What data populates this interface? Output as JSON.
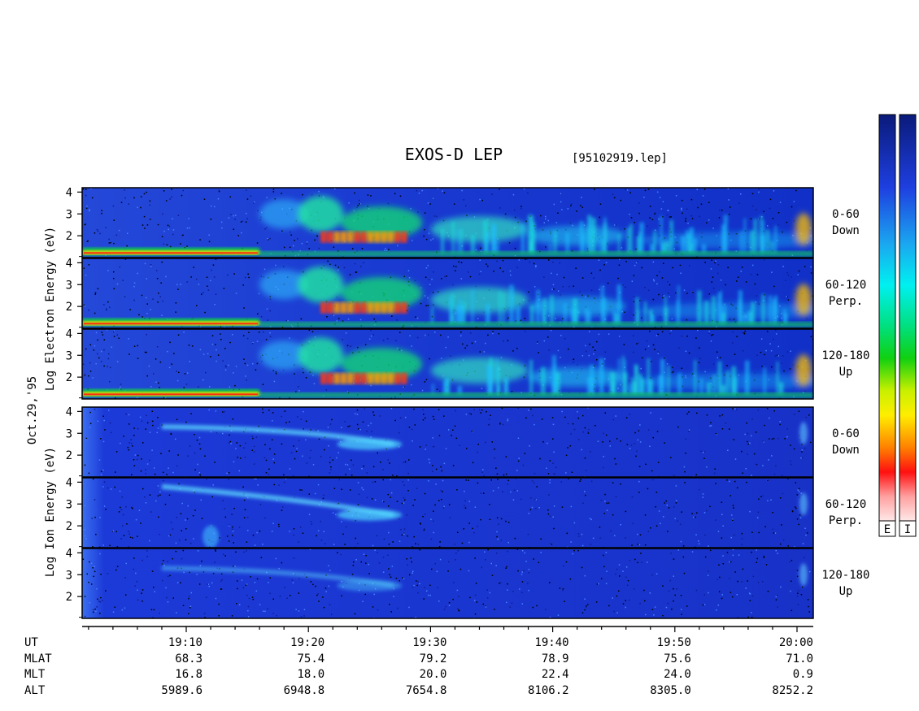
{
  "title": "EXOS-D LEP",
  "filename": "[95102919.lep]",
  "date_label": "Oct.29,'95",
  "colorbar_labels": [
    "E",
    "I"
  ],
  "colors": {
    "background": "#ffffff",
    "spectrogram_base": "#1c3ad8",
    "frame": "#000000"
  },
  "chart_data": [
    {
      "type": "heatmap",
      "species": "Electron",
      "ylabel": "Log Electron Energy (eV)",
      "panels": [
        {
          "pitch_range": "0-60",
          "direction": "Down",
          "yticks": [
            "4",
            "3",
            "2"
          ],
          "ylim": [
            1,
            4.2
          ]
        },
        {
          "pitch_range": "60-120",
          "direction": "Perp.",
          "yticks": [
            "4",
            "3",
            "2"
          ],
          "ylim": [
            1,
            4.2
          ]
        },
        {
          "pitch_range": "120-180",
          "direction": "Up",
          "yticks": [
            "4",
            "3",
            "2"
          ],
          "ylim": [
            1,
            4.2
          ]
        }
      ]
    },
    {
      "type": "heatmap",
      "species": "Ion",
      "ylabel": "Log Ion Energy (eV)",
      "panels": [
        {
          "pitch_range": "0-60",
          "direction": "Down",
          "yticks": [
            "4",
            "3",
            "2"
          ],
          "ylim": [
            1,
            4.2
          ]
        },
        {
          "pitch_range": "60-120",
          "direction": "Perp.",
          "yticks": [
            "4",
            "3",
            "2"
          ],
          "ylim": [
            1,
            4.2
          ]
        },
        {
          "pitch_range": "120-180",
          "direction": "Up",
          "yticks": [
            "4",
            "3",
            "2"
          ],
          "ylim": [
            1,
            4.2
          ]
        }
      ]
    }
  ],
  "orbit_table": {
    "row_labels": [
      "UT",
      "MLAT",
      "MLT",
      "ALT"
    ],
    "columns": [
      {
        "UT": "19:10",
        "MLAT": "68.3",
        "MLT": "16.8",
        "ALT": "5989.6"
      },
      {
        "UT": "19:20",
        "MLAT": "75.4",
        "MLT": "18.0",
        "ALT": "6948.8"
      },
      {
        "UT": "19:30",
        "MLAT": "79.2",
        "MLT": "20.0",
        "ALT": "7654.8"
      },
      {
        "UT": "19:40",
        "MLAT": "78.9",
        "MLT": "22.4",
        "ALT": "8106.2"
      },
      {
        "UT": "19:50",
        "MLAT": "75.6",
        "MLT": "24.0",
        "ALT": "8305.0"
      },
      {
        "UT": "20:00",
        "MLAT": "71.0",
        "MLT": "0.9",
        "ALT": "8252.2"
      }
    ]
  }
}
